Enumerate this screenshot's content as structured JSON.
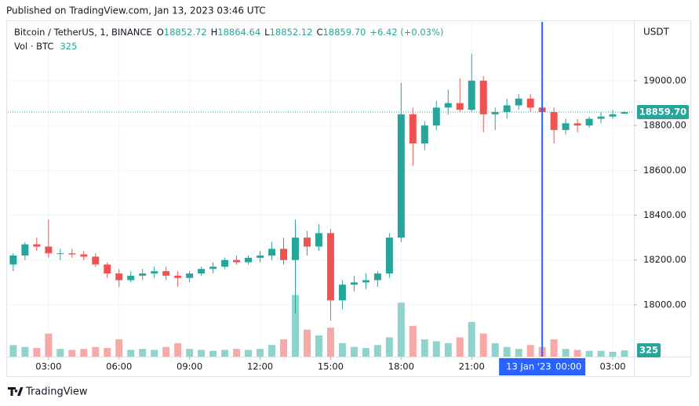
{
  "header": {
    "published": "Published on TradingView.com, Jan 13, 2023 03:46 UTC"
  },
  "legend": {
    "symbol": "Bitcoin / TetherUS, 1, BINANCE",
    "o_label": "O",
    "o": "18852.72",
    "h_label": "H",
    "h": "18864.64",
    "l_label": "L",
    "l": "18852.12",
    "c_label": "C",
    "c": "18859.70",
    "change": "+6.42 (+0.03%)",
    "vol_label": "Vol · BTC",
    "vol": "325"
  },
  "footer": {
    "brand": "TradingView"
  },
  "chart_data": {
    "type": "candlestick",
    "currency": "USDT",
    "up_color": "#26a69a",
    "down_color": "#ef5350",
    "volume_up_color": "#8fd3cc",
    "volume_down_color": "#f7a9a7",
    "grid": true,
    "x": [
      1.5,
      2,
      2.5,
      3,
      3.5,
      4,
      4.5,
      5,
      5.5,
      6,
      6.5,
      7,
      7.5,
      8,
      8.5,
      9,
      9.5,
      10,
      10.5,
      11,
      11.5,
      12,
      12.5,
      13,
      13.5,
      14,
      14.5,
      15,
      15.5,
      16,
      16.5,
      17,
      17.5,
      18,
      18.5,
      19,
      19.5,
      20,
      20.5,
      21,
      21.5,
      22,
      22.5,
      23,
      23.5,
      24,
      24.5,
      25,
      25.5,
      26,
      26.5,
      27,
      27.5
    ],
    "open": [
      18180,
      18220,
      18270,
      18260,
      18230,
      18230,
      18225,
      18215,
      18180,
      18140,
      18110,
      18130,
      18140,
      18150,
      18130,
      18120,
      18140,
      18160,
      18170,
      18200,
      18190,
      18210,
      18220,
      18250,
      18200,
      18300,
      18260,
      18320,
      18020,
      18090,
      18100,
      18110,
      18140,
      18300,
      18850,
      18720,
      18800,
      18880,
      18900,
      18870,
      19000,
      18850,
      18860,
      18890,
      18920,
      18880,
      18860,
      18780,
      18810,
      18800,
      18830,
      18840,
      18852.72
    ],
    "high": [
      18230,
      18280,
      18300,
      18380,
      18250,
      18250,
      18240,
      18230,
      18190,
      18160,
      18150,
      18160,
      18170,
      18170,
      18150,
      18150,
      18170,
      18190,
      18210,
      18220,
      18220,
      18240,
      18280,
      18300,
      18380,
      18330,
      18360,
      18340,
      18110,
      18130,
      18140,
      18150,
      18320,
      18990,
      18880,
      18820,
      18910,
      18960,
      19010,
      19120,
      19020,
      18880,
      18920,
      18940,
      18940,
      18910,
      18880,
      18830,
      18830,
      18840,
      18860,
      18870,
      18864.64
    ],
    "low": [
      18150,
      18200,
      18240,
      18210,
      18200,
      18210,
      18200,
      18170,
      18120,
      18080,
      18100,
      18110,
      18120,
      18110,
      18080,
      18100,
      18130,
      18140,
      18160,
      18180,
      18180,
      18190,
      18200,
      18180,
      17960,
      18220,
      18240,
      17930,
      17980,
      18060,
      18070,
      18080,
      18120,
      18280,
      18620,
      18690,
      18780,
      18850,
      18860,
      18860,
      18770,
      18780,
      18830,
      18870,
      18860,
      18850,
      18720,
      18760,
      18770,
      18790,
      18810,
      18830,
      18852.12
    ],
    "close": [
      18220,
      18270,
      18260,
      18230,
      18230,
      18225,
      18215,
      18180,
      18140,
      18110,
      18130,
      18140,
      18150,
      18130,
      18120,
      18140,
      18160,
      18170,
      18200,
      18190,
      18210,
      18220,
      18250,
      18200,
      18300,
      18260,
      18320,
      18020,
      18090,
      18100,
      18110,
      18140,
      18300,
      18850,
      18720,
      18800,
      18880,
      18900,
      18870,
      19000,
      18850,
      18860,
      18890,
      18920,
      18880,
      18860,
      18780,
      18810,
      18800,
      18830,
      18840,
      18850,
      18859.7
    ],
    "volume": [
      600,
      500,
      450,
      1200,
      400,
      350,
      400,
      500,
      450,
      900,
      350,
      400,
      350,
      500,
      700,
      400,
      350,
      300,
      350,
      400,
      350,
      400,
      600,
      900,
      3200,
      1400,
      1100,
      1500,
      700,
      500,
      450,
      600,
      1000,
      2800,
      1600,
      900,
      800,
      700,
      1000,
      1800,
      1200,
      700,
      500,
      400,
      600,
      500,
      900,
      400,
      350,
      300,
      300,
      250,
      325
    ],
    "volume_lim": [
      0,
      3500
    ],
    "xlim": [
      1.27,
      27.9
    ],
    "xticks": [
      {
        "value": 3,
        "label": "03:00"
      },
      {
        "value": 6,
        "label": "06:00"
      },
      {
        "value": 9,
        "label": "09:00"
      },
      {
        "value": 12,
        "label": "12:00"
      },
      {
        "value": 15,
        "label": "15:00"
      },
      {
        "value": 18,
        "label": "18:00"
      },
      {
        "value": 21,
        "label": "21:00"
      },
      {
        "value": 27,
        "label": "03:00"
      }
    ],
    "ylim": [
      17769,
      19262
    ],
    "yticks": [
      {
        "value": 18000,
        "label": "18000.00"
      },
      {
        "value": 18200,
        "label": "18200.00"
      },
      {
        "value": 18400,
        "label": "18400.00"
      },
      {
        "value": 18600,
        "label": "18600.00"
      },
      {
        "value": 18800,
        "label": "18800.00"
      },
      {
        "value": 19000,
        "label": "19000.00"
      }
    ],
    "last_price": {
      "value": 18859.7,
      "label": "18859.70"
    },
    "last_volume": {
      "value": 325,
      "label": "325"
    },
    "crosshair": {
      "x": 24,
      "date_label": "13 Jan '23",
      "time_label": "00:00",
      "color": "#2962ff"
    }
  }
}
